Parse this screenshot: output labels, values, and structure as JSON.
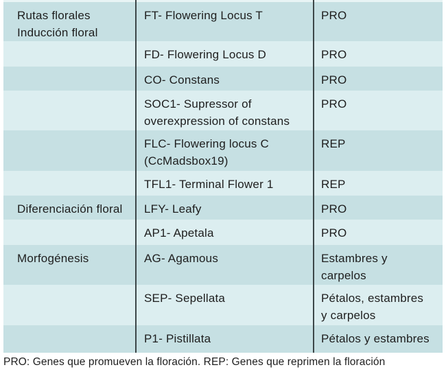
{
  "colors": {
    "row_dark": "#c6e0e3",
    "row_light": "#dceef0",
    "top_strip": "#e8f4f5",
    "divider": "#3c4648",
    "text": "#1e1e1e",
    "background": "#ffffff"
  },
  "table": {
    "rows": [
      {
        "category": "Rutas florales\nInducción floral",
        "gene": "FT- Flowering Locus T",
        "role": "PRO"
      },
      {
        "category": "",
        "gene": "FD- Flowering Locus D",
        "role": "PRO"
      },
      {
        "category": "",
        "gene": "CO- Constans",
        "role": "PRO"
      },
      {
        "category": "",
        "gene": "SOC1- Supressor of\noverexpression of constans",
        "role": "PRO"
      },
      {
        "category": "",
        "gene": "FLC- Flowering locus C\n(CcMadsbox19)",
        "role": "REP"
      },
      {
        "category": "",
        "gene": "TFL1- Terminal Flower 1",
        "role": "REP"
      },
      {
        "category": "Diferenciación floral",
        "gene": "LFY- Leafy",
        "role": "PRO"
      },
      {
        "category": "",
        "gene": "AP1- Apetala",
        "role": "PRO"
      },
      {
        "category": "Morfogénesis",
        "gene": "AG- Agamous",
        "role": "Estambres y\ncarpelos"
      },
      {
        "category": "",
        "gene": "SEP- Sepellata",
        "role": "Pétalos, estambres\ny carpelos"
      },
      {
        "category": "",
        "gene": "P1- Pistillata",
        "role": "Pétalos y estambres"
      }
    ]
  },
  "footnote": {
    "text": "PRO: Genes que promueven la floración. REP: Genes que reprimen la floración"
  }
}
